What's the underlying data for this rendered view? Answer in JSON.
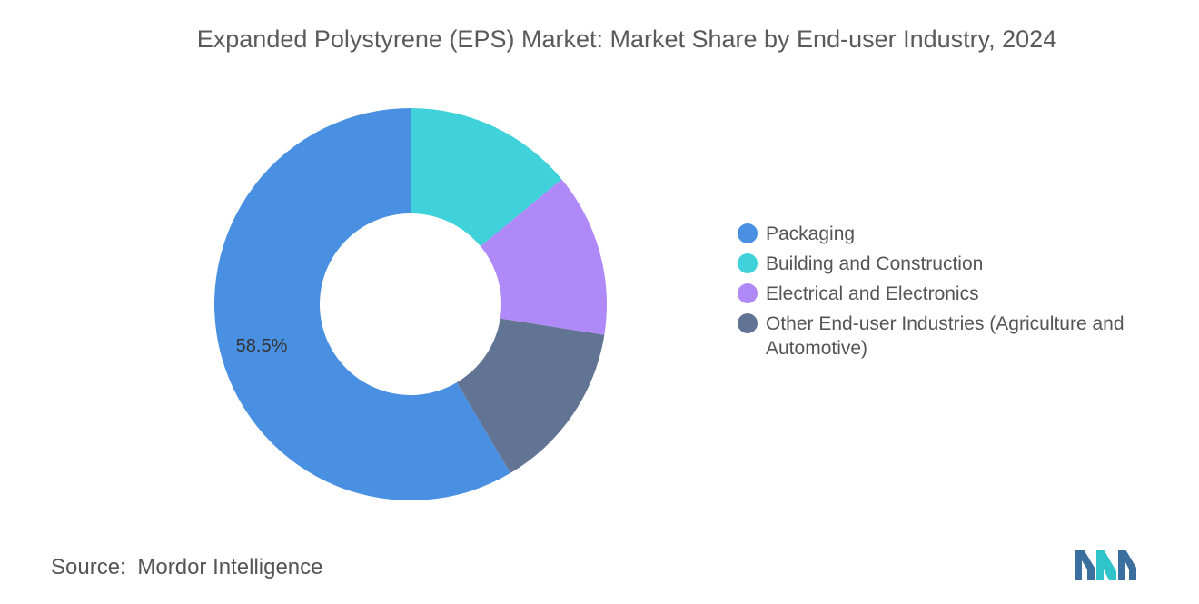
{
  "title": "Expanded Polystyrene (EPS) Market: Market Share by End-user Industry, 2024",
  "source": {
    "label": "Source:",
    "value": "Mordor Intelligence"
  },
  "chart_data": {
    "type": "pie",
    "style": "donut",
    "title": "Expanded Polystyrene (EPS) Market: Market Share by End-user Industry, 2024",
    "legend_position": "right",
    "series": [
      {
        "name": "Packaging",
        "value": 58.5,
        "label": "58.5%",
        "color": "#4a90e2"
      },
      {
        "name": "Building and Construction",
        "value": 14.0,
        "label": "",
        "color": "#40d2db"
      },
      {
        "name": "Electrical and Electronics",
        "value": 13.5,
        "label": "",
        "color": "#b089f8"
      },
      {
        "name": "Other End-user Industries (Agriculture and Automotive)",
        "value": 14.0,
        "label": "",
        "color": "#627494"
      }
    ]
  }
}
